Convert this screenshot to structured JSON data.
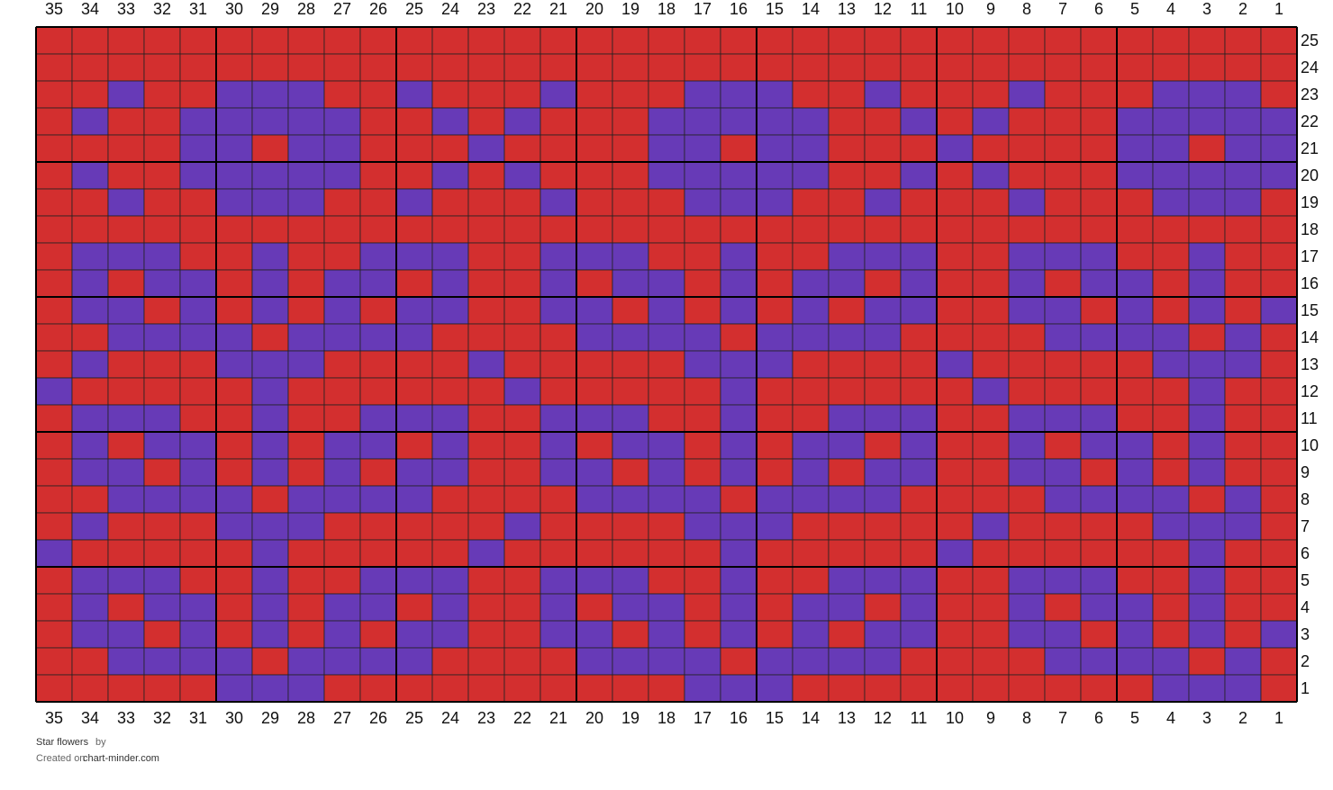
{
  "grid": {
    "palette": {
      "R": "#d32f2f",
      "P": "#673ab7"
    },
    "columns": [
      35,
      34,
      33,
      32,
      31,
      30,
      29,
      28,
      27,
      26,
      25,
      24,
      23,
      22,
      21,
      20,
      19,
      18,
      17,
      16,
      15,
      14,
      13,
      12,
      11,
      10,
      9,
      8,
      7,
      6,
      5,
      4,
      3,
      2,
      1
    ],
    "rows": [
      {
        "label": 25,
        "cells": "RRRRRRRRRRRRRRRRRRRRRRRRRRRRRRRRRRR"
      },
      {
        "label": 24,
        "cells": "RRRRRRRRRRRRRRRRRRRRRRRRRRRRRRRRRRR"
      },
      {
        "label": 23,
        "cells": "RRPRRPPPRRPRRRPRRRPPPRRPRRRPRRRPPPR"
      },
      {
        "label": 22,
        "cells": "RPRRPPPPPRRPRPRRRPPPPPRRPRPRRRPPPPP"
      },
      {
        "label": 21,
        "cells": "RRRRPPRPPRRRPRRRRPPRPPRRRPRRRRPPRPP"
      },
      {
        "label": 20,
        "cells": "RPRRPPPPPRRPRPRRRPPPPPRRPRPRRRPPPPP"
      },
      {
        "label": 19,
        "cells": "RRPRRPPPRRPRRRPRRRPPPRRPRRRPRRRPPPR"
      },
      {
        "label": 18,
        "cells": "RRRRRRRRRRRRRRRRRRRRRRRRRRRRRRRRRRR"
      },
      {
        "label": 17,
        "cells": "RPPPRRPRRPPPRRPPPRRPRRPPPRRPPPRRPRR"
      },
      {
        "label": 16,
        "cells": "RPRPPRPRPPRPRRPRPPRPRPPRPRRPRPPRPRR"
      },
      {
        "label": 15,
        "cells": "RPPRPRPRPRPPRRPPRPRPRPRPPRRPPRPRPRP"
      },
      {
        "label": 14,
        "cells": "RRPPPPRPPPPRRRRPPPPRPPPPRRRRPPPPRPR"
      },
      {
        "label": 13,
        "cells": "RPRRRPPPRRRRPRRRRRPPPRRRRPRRRRRPPPR"
      },
      {
        "label": 12,
        "cells": "PRRRRRPRRRRRRPRRRRRPRRRRRRPRRRRRPRR"
      },
      {
        "label": 11,
        "cells": "RPPPRRPRRPPPRRPPPRRPRRPPPRRPPPRRPRR"
      },
      {
        "label": 10,
        "cells": "RPRPPRPRPPRPRRPRPPRPRPPRPRRPRPPRPRR"
      },
      {
        "label": 9,
        "cells": "RPPRPRPRPRPPRRPPRPRPRPRPPRRPPRPRPRR"
      },
      {
        "label": 8,
        "cells": "RRPPPPRPPPPRRRRPPPPRPPPPRRRRPPPPRPR"
      },
      {
        "label": 7,
        "cells": "RPRRRPPPRRRRRPRRRRPPPRRRRRPRRRRPPPR"
      },
      {
        "label": 6,
        "cells": "PRRRRRPRRRRRPRRRRRRPRRRRRPRRRRRRPRR"
      },
      {
        "label": 5,
        "cells": "RPPPRRPRRPPPRRPPPRRPRRPPPRRPPPRRPRR"
      },
      {
        "label": 4,
        "cells": "RPRPPRPRPPRPRRPRPPRPRPPRPRRPRPPRPRR"
      },
      {
        "label": 3,
        "cells": "RPPRPRPRPRPPRRPPRPRPRPRPPRRPPRPRPRP"
      },
      {
        "label": 2,
        "cells": "RRPPPPRPPPPRRRRPPPPRPPPPRRRRPPPPRPR"
      },
      {
        "label": 1,
        "cells": "RRRRRPPPRRRRRRRRRRPPPRRRRRRRRRRPPPR"
      }
    ]
  },
  "footer": {
    "title": "Star flowers",
    "by": "by",
    "created": "Created on",
    "site": "chart-minder.com"
  }
}
